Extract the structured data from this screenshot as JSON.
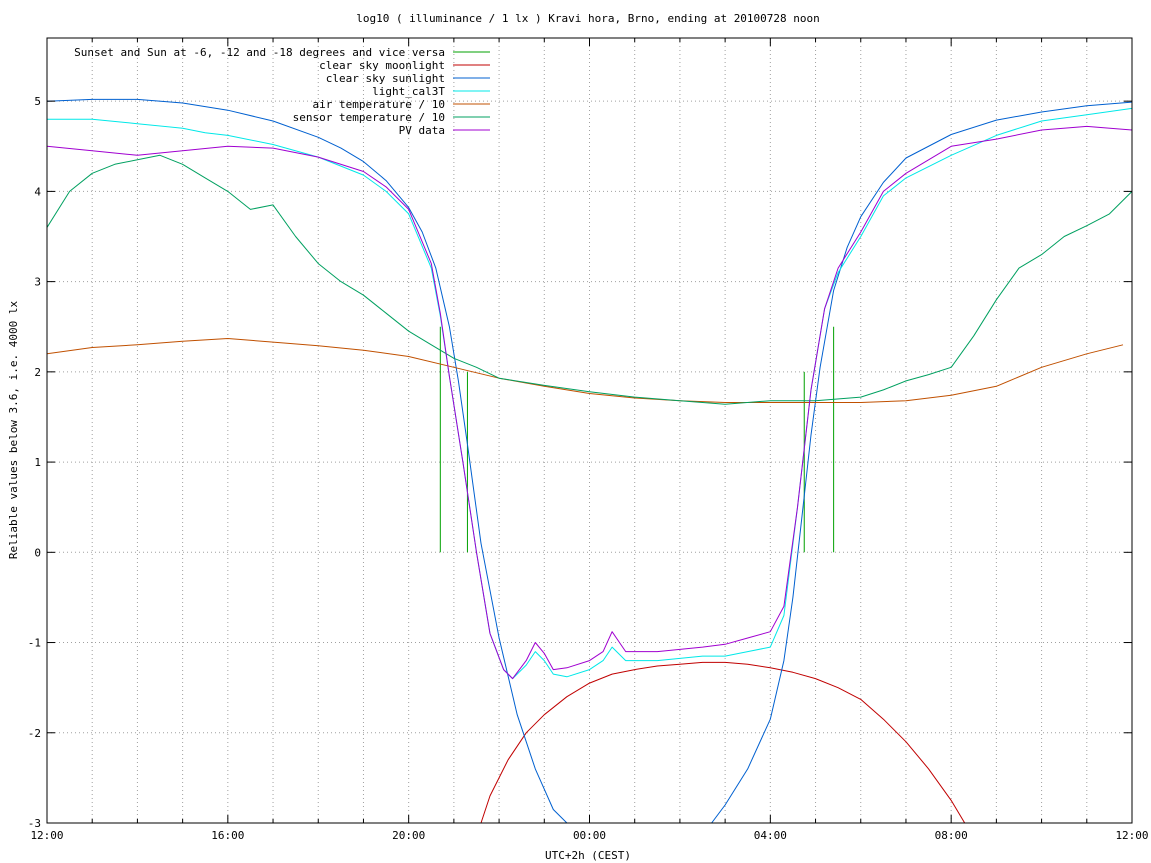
{
  "chart_data": {
    "type": "line",
    "title": "log10 ( illuminance / 1 lx ) Kravi hora, Brno, ending at 20100728 noon",
    "xlabel": "UTC+2h (CEST)",
    "ylabel": "Reliable values below 3.6, i.e. 4000 lx",
    "xlim": [
      12,
      36
    ],
    "ylim": [
      -3,
      5.7
    ],
    "grid": true,
    "legend_position": "top-left",
    "x_ticks": [
      {
        "v": 12,
        "label": "12:00"
      },
      {
        "v": 16,
        "label": "16:00"
      },
      {
        "v": 20,
        "label": "20:00"
      },
      {
        "v": 24,
        "label": "00:00"
      },
      {
        "v": 28,
        "label": "04:00"
      },
      {
        "v": 32,
        "label": "08:00"
      },
      {
        "v": 36,
        "label": "12:00"
      }
    ],
    "x_minor": [
      13,
      14,
      15,
      17,
      18,
      19,
      21,
      22,
      23,
      25,
      26,
      27,
      29,
      30,
      31,
      33,
      34,
      35
    ],
    "y_ticks": [
      -3,
      -2,
      -1,
      0,
      1,
      2,
      3,
      4,
      5
    ],
    "series": [
      {
        "name": "Sunset and Sun at -6, -12 and -18 degrees and vice versa",
        "color": "#00a000",
        "style": "impulses",
        "x": [
          20.7,
          21.3,
          22.2,
          23.33,
          26.78,
          27.87,
          28.75,
          29.4
        ],
        "y": [
          2.5,
          2.0,
          0,
          0,
          0,
          0,
          2.0,
          2.5
        ]
      },
      {
        "name": "clear sky moonlight",
        "color": "#c00000",
        "style": "line",
        "x": [
          21.6,
          21.8,
          22.2,
          22.6,
          23.0,
          23.5,
          24.0,
          24.5,
          25.0,
          25.5,
          26.0,
          26.5,
          27.0,
          27.5,
          28.0,
          28.5,
          29.0,
          29.5,
          30.0,
          30.5,
          31.0,
          31.5,
          32.0,
          32.3
        ],
        "y": [
          -3.0,
          -2.7,
          -2.3,
          -2.0,
          -1.8,
          -1.6,
          -1.45,
          -1.35,
          -1.3,
          -1.26,
          -1.24,
          -1.22,
          -1.22,
          -1.24,
          -1.28,
          -1.33,
          -1.4,
          -1.5,
          -1.63,
          -1.85,
          -2.1,
          -2.4,
          -2.75,
          -3.0
        ]
      },
      {
        "name": "clear sky sunlight",
        "color": "#0060d0",
        "style": "line",
        "x": [
          12.0,
          13.0,
          14.0,
          15.0,
          16.0,
          17.0,
          18.0,
          18.5,
          19.0,
          19.5,
          20.0,
          20.3,
          20.6,
          20.9,
          21.1,
          21.3,
          21.6,
          22.0,
          22.4,
          22.8,
          23.2,
          23.5,
          26.7,
          27.0,
          27.5,
          28.0,
          28.3,
          28.5,
          28.7,
          28.9,
          29.1,
          29.4,
          29.7,
          30.0,
          30.5,
          31.0,
          32.0,
          33.0,
          34.0,
          35.0,
          36.0
        ],
        "y": [
          5.0,
          5.02,
          5.02,
          4.98,
          4.9,
          4.78,
          4.6,
          4.48,
          4.33,
          4.12,
          3.82,
          3.55,
          3.15,
          2.5,
          1.9,
          1.2,
          0.1,
          -0.95,
          -1.8,
          -2.4,
          -2.85,
          -3.0,
          -3.0,
          -2.8,
          -2.4,
          -1.85,
          -1.2,
          -0.5,
          0.4,
          1.3,
          2.05,
          2.9,
          3.38,
          3.72,
          4.1,
          4.37,
          4.63,
          4.79,
          4.88,
          4.95,
          4.99
        ]
      },
      {
        "name": "light_cal3T",
        "color": "#00e8e8",
        "style": "line",
        "x": [
          12.0,
          13.0,
          14.0,
          15.0,
          15.5,
          16.0,
          17.0,
          18.0,
          19.0,
          19.5,
          20.0,
          20.5,
          20.7,
          20.9,
          21.2,
          21.5,
          21.8,
          22.1,
          22.3,
          22.6,
          22.8,
          23.0,
          23.2,
          23.5,
          24.0,
          24.3,
          24.5,
          24.8,
          25.5,
          26.5,
          27.0,
          27.5,
          28.0,
          28.3,
          28.6,
          28.9,
          29.2,
          29.5,
          30.0,
          30.5,
          31.0,
          32.0,
          33.0,
          34.0,
          35.0,
          36.0
        ],
        "y": [
          4.8,
          4.8,
          4.75,
          4.7,
          4.65,
          4.62,
          4.52,
          4.38,
          4.18,
          4.0,
          3.75,
          3.15,
          2.62,
          1.95,
          1.0,
          0.0,
          -0.9,
          -1.3,
          -1.4,
          -1.25,
          -1.1,
          -1.2,
          -1.35,
          -1.38,
          -1.3,
          -1.2,
          -1.05,
          -1.2,
          -1.2,
          -1.15,
          -1.15,
          -1.1,
          -1.05,
          -0.7,
          0.5,
          1.8,
          2.7,
          3.1,
          3.5,
          3.95,
          4.15,
          4.4,
          4.62,
          4.78,
          4.85,
          4.92
        ]
      },
      {
        "name": "air temperature / 10",
        "color": "#c05000",
        "style": "line",
        "x": [
          12.0,
          13.0,
          14.0,
          15.0,
          16.0,
          17.0,
          18.0,
          19.0,
          20.0,
          21.0,
          22.0,
          23.0,
          24.0,
          25.0,
          26.0,
          27.0,
          28.0,
          29.0,
          30.0,
          31.0,
          32.0,
          33.0,
          34.0,
          35.0,
          35.8
        ],
        "y": [
          2.2,
          2.27,
          2.3,
          2.34,
          2.37,
          2.33,
          2.29,
          2.24,
          2.17,
          2.05,
          1.93,
          1.84,
          1.76,
          1.71,
          1.68,
          1.66,
          1.66,
          1.66,
          1.66,
          1.68,
          1.74,
          1.84,
          2.05,
          2.2,
          2.3
        ]
      },
      {
        "name": "sensor temperature / 10",
        "color": "#00a060",
        "style": "line",
        "x": [
          12.0,
          12.5,
          13.0,
          13.5,
          14.0,
          14.5,
          15.0,
          15.5,
          16.0,
          16.5,
          17.0,
          17.5,
          18.0,
          18.5,
          19.0,
          19.5,
          20.0,
          20.5,
          21.0,
          21.5,
          22.0,
          23.0,
          24.0,
          25.0,
          26.0,
          27.0,
          28.0,
          29.0,
          30.0,
          30.5,
          31.0,
          31.5,
          32.0,
          32.5,
          33.0,
          33.5,
          34.0,
          34.5,
          35.0,
          35.5,
          36.0
        ],
        "y": [
          3.6,
          4.0,
          4.2,
          4.3,
          4.35,
          4.4,
          4.3,
          4.15,
          4.0,
          3.8,
          3.85,
          3.5,
          3.2,
          3.0,
          2.85,
          2.65,
          2.45,
          2.3,
          2.15,
          2.05,
          1.93,
          1.85,
          1.78,
          1.72,
          1.68,
          1.64,
          1.68,
          1.68,
          1.72,
          1.8,
          1.9,
          1.97,
          2.05,
          2.4,
          2.8,
          3.15,
          3.3,
          3.5,
          3.62,
          3.75,
          4.0
        ]
      },
      {
        "name": "PV data",
        "color": "#a000d0",
        "style": "line",
        "x": [
          12.0,
          13.0,
          14.0,
          15.0,
          16.0,
          17.0,
          18.0,
          19.0,
          19.5,
          20.0,
          20.5,
          20.7,
          20.9,
          21.2,
          21.5,
          21.8,
          22.1,
          22.3,
          22.6,
          22.8,
          23.0,
          23.2,
          23.5,
          24.0,
          24.3,
          24.5,
          24.8,
          25.5,
          26.5,
          27.0,
          27.5,
          28.0,
          28.3,
          28.6,
          28.9,
          29.2,
          29.5,
          30.0,
          30.5,
          31.0,
          32.0,
          33.0,
          34.0,
          35.0,
          36.0
        ],
        "y": [
          4.5,
          4.45,
          4.4,
          4.45,
          4.5,
          4.48,
          4.38,
          4.22,
          4.05,
          3.8,
          3.2,
          2.65,
          1.95,
          1.0,
          0.0,
          -0.9,
          -1.3,
          -1.4,
          -1.2,
          -1.0,
          -1.12,
          -1.3,
          -1.28,
          -1.2,
          -1.1,
          -0.88,
          -1.1,
          -1.1,
          -1.05,
          -1.02,
          -0.95,
          -0.88,
          -0.6,
          0.5,
          1.8,
          2.7,
          3.15,
          3.55,
          4.0,
          4.2,
          4.5,
          4.58,
          4.68,
          4.72,
          4.68
        ]
      }
    ]
  }
}
